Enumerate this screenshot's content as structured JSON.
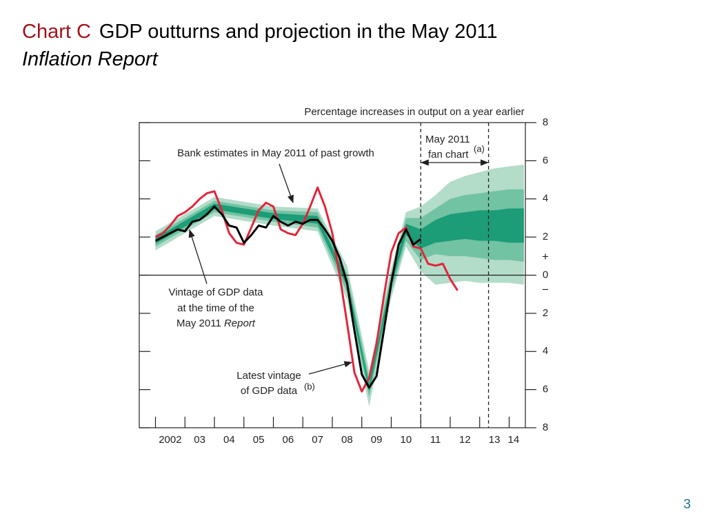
{
  "slide": {
    "label": "Chart C",
    "title": "GDP outturns and projection in the May 2011",
    "title_italic": "Inflation Report",
    "page_number": "3"
  },
  "chart_data": {
    "type": "line",
    "y_label": "Percentage increases in output on a year earlier",
    "xlim": [
      2001.45,
      2014.55
    ],
    "xticks": [
      2002,
      {
        "value": 2003,
        "label": "03"
      },
      {
        "value": 2004,
        "label": "04"
      },
      {
        "value": 2005,
        "label": "05"
      },
      {
        "value": 2006,
        "label": "06"
      },
      {
        "value": 2007,
        "label": "07"
      },
      {
        "value": 2008,
        "label": "08"
      },
      {
        "value": 2009,
        "label": "09"
      },
      {
        "value": 2010,
        "label": "10"
      },
      {
        "value": 2011,
        "label": "11"
      },
      {
        "value": 2012,
        "label": "12"
      },
      {
        "value": 2013,
        "label": "13"
      },
      {
        "value": 2014,
        "label": "14"
      }
    ],
    "ylim": [
      -8,
      8
    ],
    "yticks": [
      {
        "value": -8,
        "label": "8"
      },
      {
        "value": -6,
        "label": "6"
      },
      {
        "value": -4,
        "label": "4"
      },
      {
        "value": -2,
        "label": "2"
      },
      0,
      2,
      4,
      6,
      8
    ],
    "sign_plus": "+",
    "sign_minus": "−",
    "vlines": [
      2011,
      2013.3
    ],
    "fan_x": [
      2002,
      2004,
      2006,
      2007.5,
      2008.5,
      2009.25,
      2010,
      2010.5,
      2011,
      2011.5,
      2012,
      2012.5,
      2013,
      2013.5,
      2014,
      2014.5
    ],
    "fan": [
      {
        "color": "#b3dcc9",
        "upper": [
          2.3,
          4.1,
          3.6,
          3.5,
          0.5,
          -5.0,
          0.4,
          3.3,
          3.6,
          4.2,
          4.9,
          5.2,
          5.4,
          5.6,
          5.7,
          5.8
        ],
        "lower": [
          1.3,
          3.1,
          2.6,
          2.3,
          -1.3,
          -6.9,
          -1.2,
          1.5,
          0.2,
          -0.5,
          -0.4,
          -0.3,
          -0.4,
          -0.4,
          -0.4,
          -0.5
        ]
      },
      {
        "color": "#72c3a3",
        "upper": [
          2.1,
          3.9,
          3.4,
          3.3,
          0.1,
          -5.4,
          0.1,
          3.0,
          3.0,
          3.5,
          4.0,
          4.2,
          4.3,
          4.4,
          4.5,
          4.5
        ],
        "lower": [
          1.5,
          3.3,
          2.8,
          2.5,
          -0.9,
          -6.4,
          -0.9,
          1.8,
          0.8,
          1.1,
          1.0,
          1.0,
          0.9,
          0.8,
          0.8,
          0.7
        ]
      },
      {
        "color": "#1c9c77",
        "upper": [
          1.95,
          3.75,
          3.25,
          3.1,
          -0.2,
          -5.7,
          -0.2,
          2.7,
          2.4,
          2.9,
          3.2,
          3.3,
          3.4,
          3.4,
          3.5,
          3.5
        ],
        "lower": [
          1.65,
          3.45,
          2.95,
          2.7,
          -0.6,
          -6.1,
          -0.6,
          2.1,
          1.4,
          1.7,
          1.8,
          1.9,
          1.8,
          1.8,
          1.7,
          1.7
        ]
      }
    ],
    "series": [
      {
        "color": "#e1263a",
        "x": [
          2002,
          2002.25,
          2002.5,
          2002.75,
          2003,
          2003.25,
          2003.5,
          2003.75,
          2004,
          2004.25,
          2004.5,
          2004.75,
          2005,
          2005.25,
          2005.5,
          2005.75,
          2006,
          2006.25,
          2006.5,
          2006.75,
          2007,
          2007.25,
          2007.5,
          2007.75,
          2008,
          2008.25,
          2008.5,
          2008.75,
          2009,
          2009.25,
          2009.5,
          2009.75,
          2010,
          2010.25,
          2010.5,
          2010.75,
          2011,
          2011.25,
          2011.5,
          2011.75,
          2012,
          2012.25
        ],
        "values": [
          2.0,
          2.2,
          2.6,
          3.1,
          3.3,
          3.6,
          4.0,
          4.3,
          4.4,
          3.4,
          2.2,
          1.7,
          1.6,
          2.5,
          3.4,
          3.8,
          3.6,
          2.4,
          2.2,
          2.1,
          2.7,
          3.6,
          4.6,
          3.6,
          2.2,
          0.0,
          -2.5,
          -5.1,
          -6.1,
          -5.4,
          -3.6,
          -1.1,
          1.2,
          2.2,
          2.5,
          1.5,
          1.4,
          0.6,
          0.5,
          0.6,
          -0.2,
          -0.8
        ]
      },
      {
        "color": "#000000",
        "x": [
          2002,
          2002.25,
          2002.5,
          2002.75,
          2003,
          2003.25,
          2003.5,
          2003.75,
          2004,
          2004.25,
          2004.5,
          2004.75,
          2005,
          2005.25,
          2005.5,
          2005.75,
          2006,
          2006.25,
          2006.5,
          2006.75,
          2007,
          2007.25,
          2007.5,
          2007.75,
          2008,
          2008.25,
          2008.5,
          2008.75,
          2009,
          2009.25,
          2009.5,
          2009.75,
          2010,
          2010.25,
          2010.5,
          2010.75,
          2011
        ],
        "values": [
          1.8,
          2.0,
          2.2,
          2.4,
          2.3,
          2.8,
          2.9,
          3.2,
          3.6,
          3.2,
          2.6,
          2.5,
          1.7,
          2.1,
          2.6,
          2.5,
          3.1,
          2.8,
          2.6,
          2.8,
          2.7,
          2.9,
          2.9,
          2.4,
          1.8,
          0.9,
          -0.4,
          -2.9,
          -5.2,
          -5.9,
          -5.3,
          -2.9,
          -0.4,
          1.6,
          2.4,
          1.6,
          1.9
        ]
      }
    ],
    "annotations": {
      "bank": "Bank estimates in May 2011 of past growth",
      "fan_1": "May 2011",
      "fan_2": "fan chart",
      "fan_note": "(a)",
      "vintage_1": "Vintage of GDP data",
      "vintage_2": "at the time of the",
      "vintage_3": "May 2011 ",
      "vintage_3_italic": "Report",
      "latest_1": "Latest vintage",
      "latest_2": "of GDP data",
      "latest_note": "(b)"
    }
  }
}
